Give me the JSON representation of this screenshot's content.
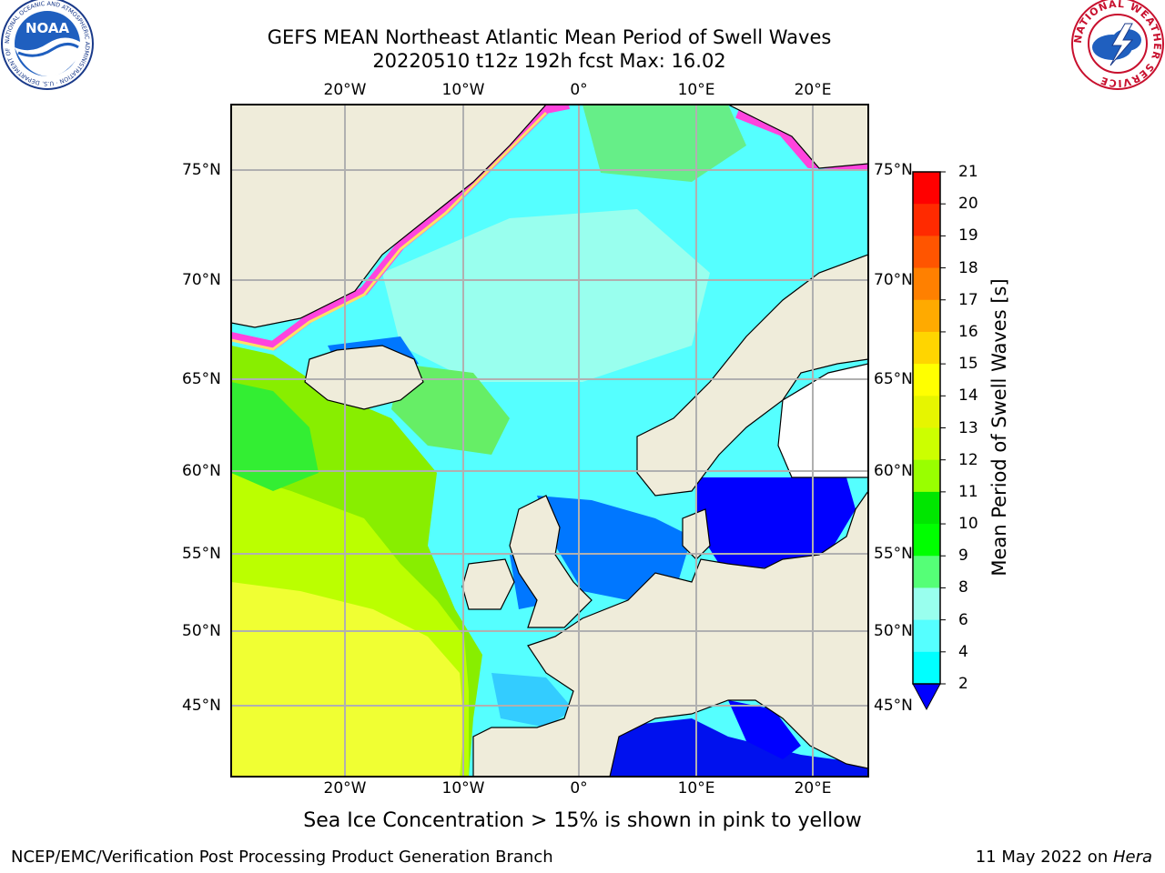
{
  "title": {
    "line1": "GEFS MEAN Northeast Atlantic Mean Period of Swell Waves",
    "line2": "20220510 t12z 192h fcst   Max: 16.02"
  },
  "longitude_labels": [
    "20°W",
    "10°W",
    "0°",
    "10°E",
    "20°E"
  ],
  "latitude_labels": [
    "75°N",
    "70°N",
    "65°N",
    "60°N",
    "55°N",
    "50°N",
    "45°N"
  ],
  "colorbar": {
    "label": "Mean Period of Swell Waves [s]",
    "ticks": [
      "21",
      "20",
      "19",
      "18",
      "17",
      "16",
      "15",
      "14",
      "13",
      "12",
      "11",
      "10",
      "9",
      "8",
      "6",
      "4",
      "2"
    ],
    "colors": [
      "#ff0000",
      "#ff2a00",
      "#ff5500",
      "#ff8000",
      "#ffaa00",
      "#ffd500",
      "#ffff00",
      "#e6f500",
      "#ccff00",
      "#99ff00",
      "#00e600",
      "#00ff00",
      "#55ff77",
      "#99ffee",
      "#55ffff",
      "#00ffff",
      "#0080ff"
    ],
    "underflow_color": "#0000ff"
  },
  "note": "Sea Ice Concentration > 15% is shown in pink to yellow",
  "footer": {
    "left": "NCEP/EMC/Verification Post Processing Product Generation Branch",
    "right_prefix": "11 May 2022 on ",
    "right_system": "Hera"
  },
  "logos": {
    "left": "NOAA",
    "left_ring": "NATIONAL OCEANIC AND ATMOSPHERIC ADMINISTRATION · U.S. DEPARTMENT OF COMMERCE",
    "right_ring": "NATIONAL WEATHER SERVICE"
  },
  "colors": {
    "land": "#efecda",
    "grid": "#b0b0b0",
    "ice_pink": "#ff44dd",
    "ice_yellow": "#ffe066"
  }
}
